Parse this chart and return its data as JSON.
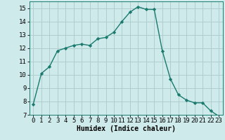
{
  "x": [
    0,
    1,
    2,
    3,
    4,
    5,
    6,
    7,
    8,
    9,
    10,
    11,
    12,
    13,
    14,
    15,
    16,
    17,
    18,
    19,
    20,
    21,
    22,
    23
  ],
  "y": [
    7.8,
    10.1,
    10.6,
    11.8,
    12.0,
    12.2,
    12.3,
    12.2,
    12.7,
    12.8,
    13.2,
    14.0,
    14.7,
    15.1,
    14.9,
    14.9,
    11.8,
    9.7,
    8.5,
    8.1,
    7.9,
    7.9,
    7.3,
    6.9
  ],
  "line_color": "#1a7a6e",
  "marker": "D",
  "marker_size": 2.2,
  "bg_color": "#ceeaea",
  "grid_color": "#b0cece",
  "xlabel": "Humidex (Indice chaleur)",
  "xlim": [
    -0.5,
    23.5
  ],
  "ylim": [
    7,
    15.5
  ],
  "yticks": [
    7,
    8,
    9,
    10,
    11,
    12,
    13,
    14,
    15
  ],
  "xticks": [
    0,
    1,
    2,
    3,
    4,
    5,
    6,
    7,
    8,
    9,
    10,
    11,
    12,
    13,
    14,
    15,
    16,
    17,
    18,
    19,
    20,
    21,
    22,
    23
  ],
  "xtick_labels": [
    "0",
    "1",
    "2",
    "3",
    "4",
    "5",
    "6",
    "7",
    "8",
    "9",
    "10",
    "11",
    "12",
    "13",
    "14",
    "15",
    "16",
    "17",
    "18",
    "19",
    "20",
    "21",
    "22",
    "23"
  ],
  "xlabel_fontsize": 7,
  "tick_fontsize": 6.5,
  "line_width": 1.0
}
